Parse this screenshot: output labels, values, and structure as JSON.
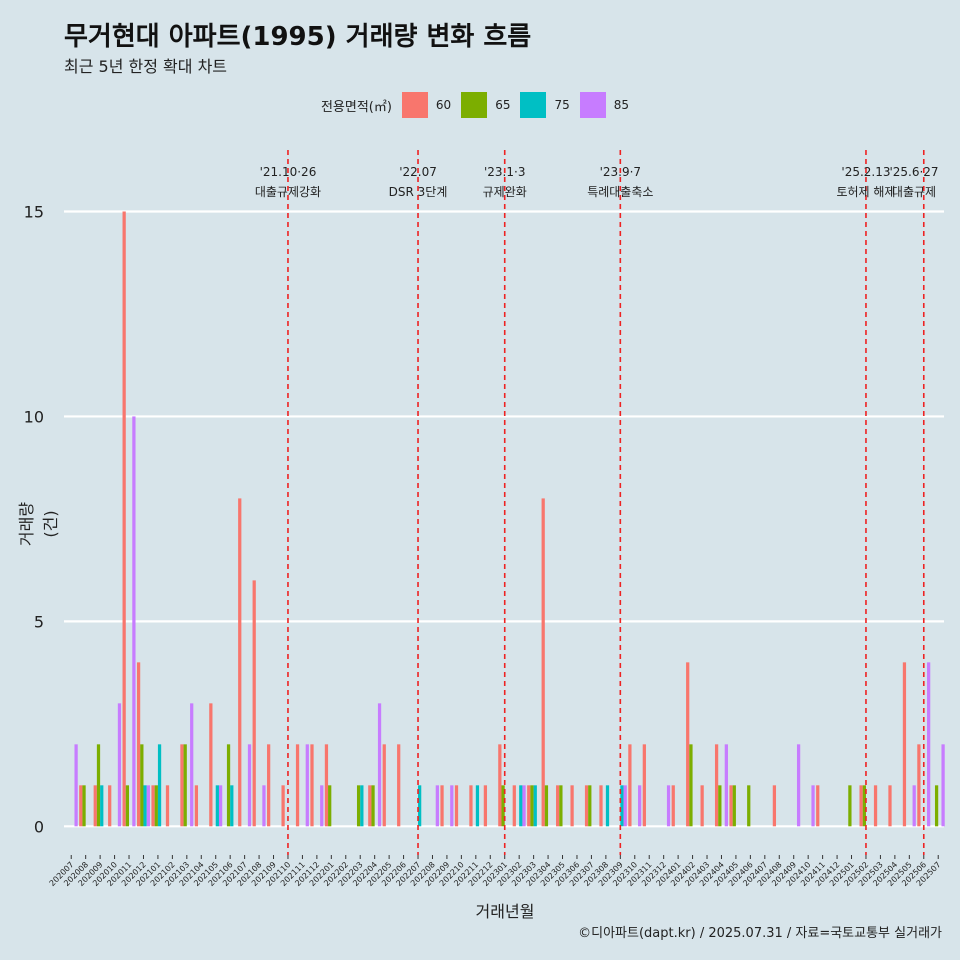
{
  "title": "무거현대 아파트(1995) 거래량 변화 흐름",
  "subtitle": "최근 5년 한정 확대 차트",
  "legend_title": "전용면적(㎡)",
  "caption": "©디아파트(dapt.kr) / 2025.07.31 / 자료=국토교통부 실거래가",
  "chart_data": {
    "type": "bar",
    "xlabel": "거래년월",
    "ylabel": "거래량(건)",
    "ylim": [
      0,
      16.5
    ],
    "y_ticks": [
      0,
      5,
      10,
      15
    ],
    "grid": true,
    "legend_position": "top",
    "categories": [
      "202007",
      "202008",
      "202009",
      "202010",
      "202011",
      "202012",
      "202101",
      "202102",
      "202103",
      "202104",
      "202105",
      "202106",
      "202107",
      "202108",
      "202109",
      "202110",
      "202111",
      "202112",
      "202201",
      "202202",
      "202203",
      "202204",
      "202205",
      "202206",
      "202207",
      "202208",
      "202209",
      "202210",
      "202211",
      "202212",
      "202301",
      "202302",
      "202303",
      "202304",
      "202305",
      "202306",
      "202307",
      "202308",
      "202309",
      "202310",
      "202311",
      "202312",
      "202401",
      "202402",
      "202403",
      "202404",
      "202405",
      "202406",
      "202407",
      "202408",
      "202409",
      "202410",
      "202411",
      "202412",
      "202501",
      "202502",
      "202503",
      "202504",
      "202505",
      "202506",
      "202507"
    ],
    "series": [
      {
        "name": "60",
        "color": "#F8766D",
        "values": [
          0,
          1,
          1,
          1,
          15,
          4,
          1,
          1,
          2,
          1,
          3,
          0,
          8,
          6,
          2,
          1,
          2,
          2,
          2,
          0,
          0,
          1,
          2,
          2,
          0,
          0,
          1,
          1,
          1,
          1,
          2,
          1,
          1,
          8,
          1,
          1,
          1,
          1,
          0,
          2,
          2,
          0,
          1,
          4,
          1,
          2,
          1,
          0,
          0,
          1,
          0,
          0,
          1,
          0,
          0,
          1,
          1,
          1,
          4,
          2,
          0
        ]
      },
      {
        "name": "65",
        "color": "#7CAE00",
        "values": [
          0,
          1,
          2,
          0,
          1,
          2,
          1,
          0,
          2,
          0,
          0,
          2,
          0,
          0,
          0,
          0,
          0,
          0,
          1,
          0,
          1,
          1,
          0,
          0,
          0,
          0,
          0,
          0,
          0,
          0,
          1,
          0,
          1,
          1,
          1,
          0,
          1,
          0,
          0,
          0,
          0,
          0,
          0,
          2,
          0,
          1,
          1,
          1,
          0,
          0,
          0,
          0,
          0,
          0,
          1,
          1,
          0,
          0,
          0,
          0,
          1
        ]
      },
      {
        "name": "75",
        "color": "#00BFC4",
        "values": [
          0,
          0,
          1,
          0,
          0,
          1,
          2,
          0,
          0,
          0,
          1,
          1,
          0,
          0,
          0,
          0,
          0,
          0,
          0,
          0,
          1,
          0,
          0,
          0,
          1,
          0,
          0,
          0,
          1,
          0,
          0,
          1,
          1,
          0,
          0,
          0,
          0,
          1,
          1,
          0,
          0,
          0,
          0,
          0,
          0,
          0,
          0,
          0,
          0,
          0,
          0,
          0,
          0,
          0,
          0,
          0,
          0,
          0,
          0,
          0,
          0
        ]
      },
      {
        "name": "85",
        "color": "#C77CFF",
        "values": [
          2,
          0,
          0,
          3,
          10,
          1,
          0,
          0,
          3,
          0,
          1,
          0,
          2,
          1,
          0,
          0,
          2,
          1,
          0,
          0,
          0,
          3,
          0,
          0,
          0,
          1,
          1,
          0,
          0,
          0,
          0,
          1,
          0,
          0,
          0,
          0,
          0,
          0,
          1,
          1,
          0,
          1,
          0,
          0,
          0,
          2,
          0,
          0,
          0,
          0,
          2,
          1,
          0,
          0,
          0,
          0,
          0,
          0,
          1,
          4,
          2
        ]
      }
    ],
    "annotations": [
      {
        "category": "202110",
        "line1": "'21.10·26",
        "line2": "대출규제강화"
      },
      {
        "category": "202207",
        "line1": "'22.07",
        "line2": "DSR 3단계"
      },
      {
        "category": "202301",
        "line1": "'23.1·3",
        "line2": "규제완화"
      },
      {
        "category": "202309",
        "line1": "'23.9·7",
        "line2": "특례대출축소"
      },
      {
        "category": "202502",
        "line1": "'25.2.13",
        "line2": "토허제 해제"
      },
      {
        "category": "202506",
        "line1": "'25.6·27",
        "line2": "대출규제"
      }
    ]
  }
}
